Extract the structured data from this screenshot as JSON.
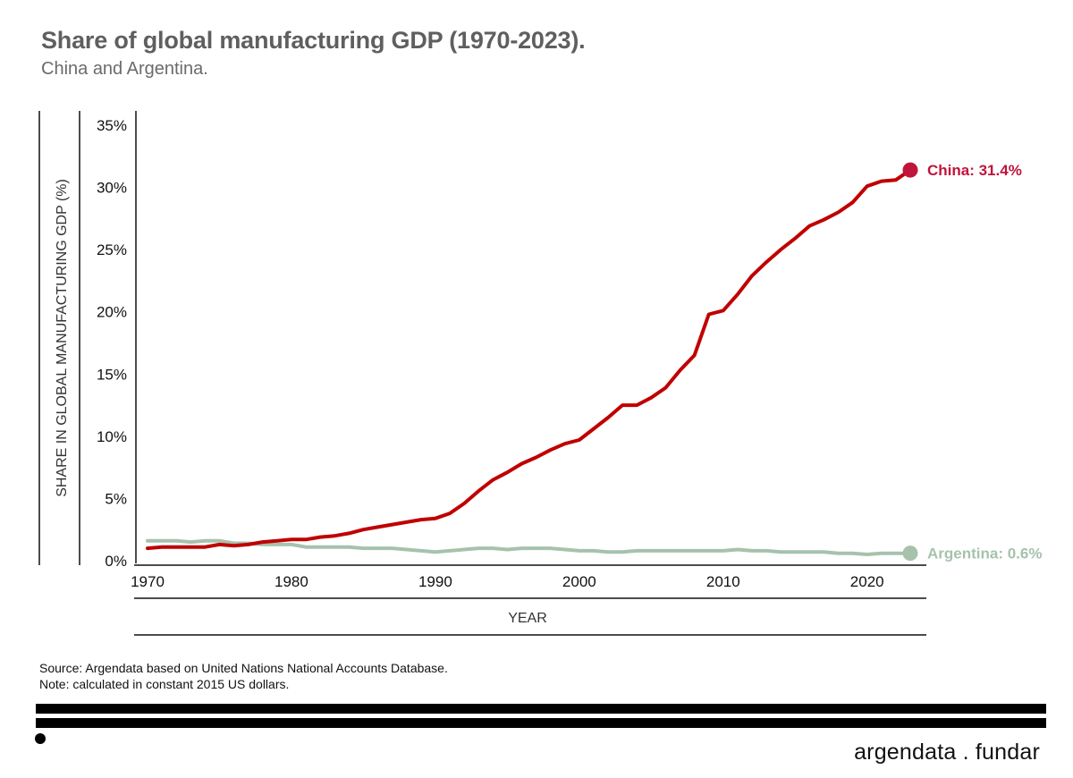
{
  "header": {
    "title": "Share of global manufacturing GDP (1970-2023).",
    "subtitle": "China and Argentina."
  },
  "footer": {
    "source": "Source: Argendata based on United Nations National Accounts Database.",
    "note": "Note: calculated in constant 2015 US dollars.",
    "logo_text": "argendata . fundar"
  },
  "chart_data": {
    "type": "line",
    "title": "Share of global manufacturing GDP (1970-2023).",
    "subtitle": "China and Argentina.",
    "xlabel": "YEAR",
    "ylabel": "SHARE IN GLOBAL MANUFACTURING GDP (%)",
    "xlim": [
      1970,
      2023
    ],
    "ylim": [
      0,
      35
    ],
    "x_ticks": [
      1970,
      1980,
      1990,
      2000,
      2010,
      2020
    ],
    "y_ticks": [
      {
        "value": 0,
        "label": "0%"
      },
      {
        "value": 5,
        "label": "5%"
      },
      {
        "value": 10,
        "label": "10%"
      },
      {
        "value": 15,
        "label": "15%"
      },
      {
        "value": 20,
        "label": "20%"
      },
      {
        "value": 25,
        "label": "25%"
      },
      {
        "value": 30,
        "label": "30%"
      },
      {
        "value": 35,
        "label": "35%"
      }
    ],
    "grid": false,
    "x": [
      1970,
      1971,
      1972,
      1973,
      1974,
      1975,
      1976,
      1977,
      1978,
      1979,
      1980,
      1981,
      1982,
      1983,
      1984,
      1985,
      1986,
      1987,
      1988,
      1989,
      1990,
      1991,
      1992,
      1993,
      1994,
      1995,
      1996,
      1997,
      1998,
      1999,
      2000,
      2001,
      2002,
      2003,
      2004,
      2005,
      2006,
      2007,
      2008,
      2009,
      2010,
      2011,
      2012,
      2013,
      2014,
      2015,
      2016,
      2017,
      2018,
      2019,
      2020,
      2021,
      2022,
      2023
    ],
    "series": [
      {
        "name": "China",
        "color": "#c00000",
        "end_label": "China: 31.4%",
        "label_color": "#c0143c",
        "values": [
          1.0,
          1.1,
          1.1,
          1.1,
          1.1,
          1.3,
          1.2,
          1.3,
          1.5,
          1.6,
          1.7,
          1.7,
          1.9,
          2.0,
          2.2,
          2.5,
          2.7,
          2.9,
          3.1,
          3.3,
          3.4,
          3.8,
          4.6,
          5.6,
          6.5,
          7.1,
          7.8,
          8.3,
          8.9,
          9.4,
          9.7,
          10.6,
          11.5,
          12.5,
          12.5,
          13.1,
          13.9,
          15.3,
          16.5,
          19.8,
          20.1,
          21.4,
          22.9,
          24.0,
          25.0,
          25.9,
          26.9,
          27.4,
          28.0,
          28.8,
          30.1,
          30.5,
          30.6,
          31.4
        ]
      },
      {
        "name": "Argentina",
        "color": "#a6c2ad",
        "end_label": "Argentina: 0.6%",
        "label_color": "#a6c2ad",
        "values": [
          1.6,
          1.6,
          1.6,
          1.5,
          1.6,
          1.6,
          1.4,
          1.4,
          1.3,
          1.3,
          1.3,
          1.1,
          1.1,
          1.1,
          1.1,
          1.0,
          1.0,
          1.0,
          0.9,
          0.8,
          0.7,
          0.8,
          0.9,
          1.0,
          1.0,
          0.9,
          1.0,
          1.0,
          1.0,
          0.9,
          0.8,
          0.8,
          0.7,
          0.7,
          0.8,
          0.8,
          0.8,
          0.8,
          0.8,
          0.8,
          0.8,
          0.9,
          0.8,
          0.8,
          0.7,
          0.7,
          0.7,
          0.7,
          0.6,
          0.6,
          0.5,
          0.6,
          0.6,
          0.6
        ]
      }
    ]
  }
}
